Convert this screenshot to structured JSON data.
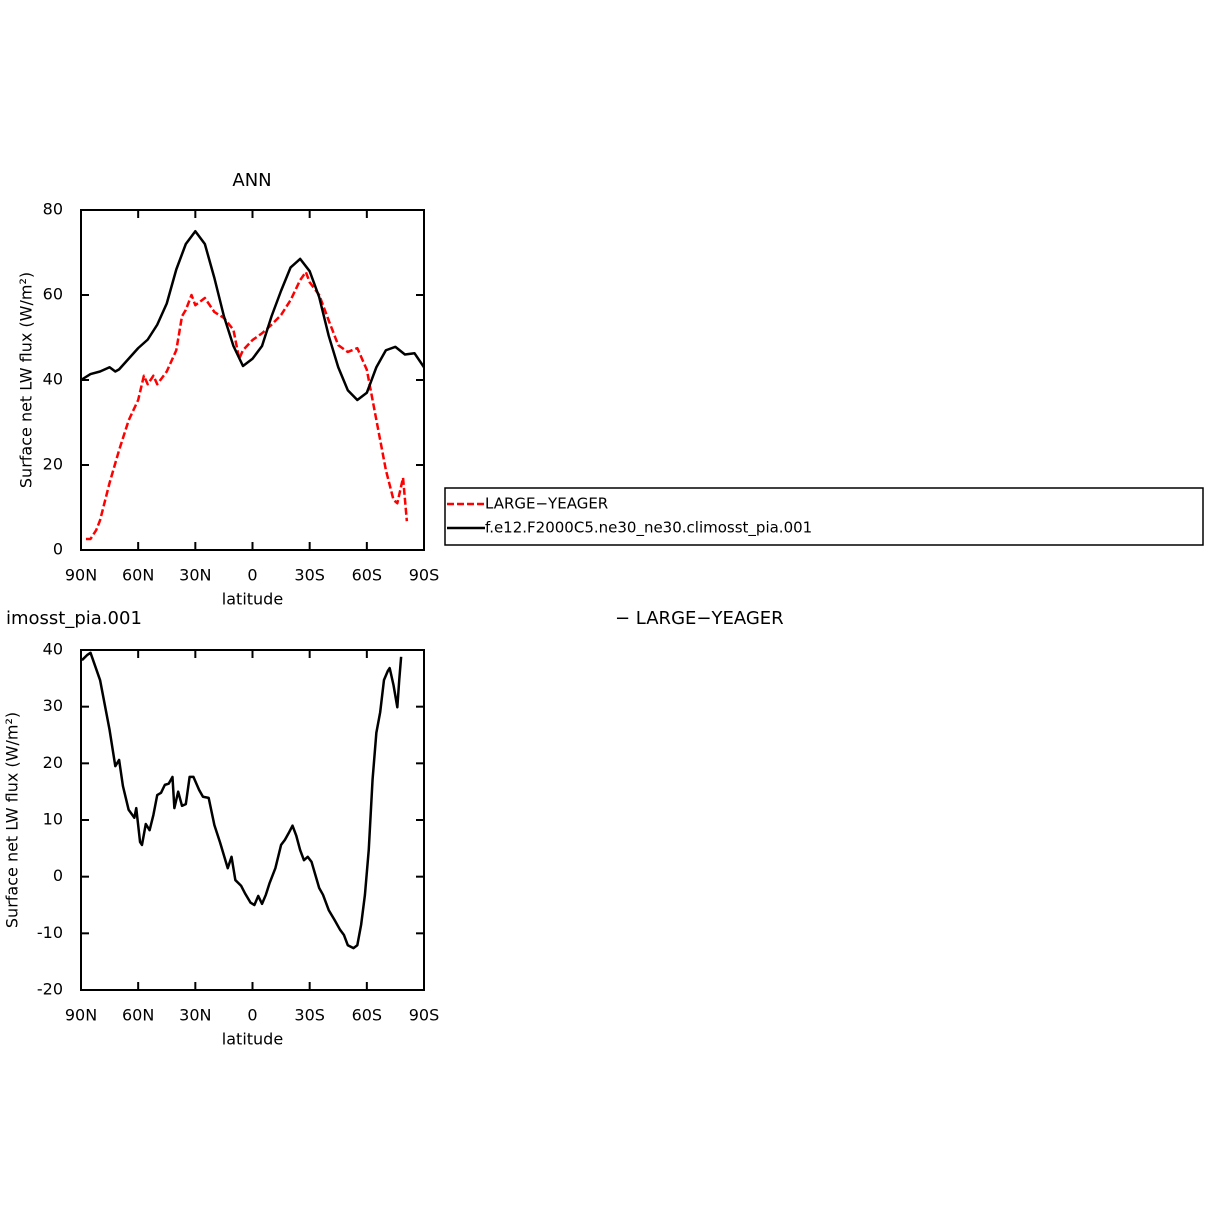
{
  "chart_data": [
    {
      "type": "line",
      "title": "ANN",
      "xlabel": "latitude",
      "ylabel": "Surface net LW flux (W/m²)",
      "xlim": [
        90,
        -90
      ],
      "xticks": [
        {
          "value": 90,
          "label": "90N"
        },
        {
          "value": 60,
          "label": "60N"
        },
        {
          "value": 30,
          "label": "30N"
        },
        0,
        {
          "value": -30,
          "label": "30S"
        },
        {
          "value": -60,
          "label": "60S"
        },
        {
          "value": -90,
          "label": "90S"
        }
      ],
      "ylim": [
        0,
        80
      ],
      "yticks": [
        0,
        20,
        40,
        60,
        80
      ],
      "legend": "outside-right",
      "series": [
        {
          "name": "LARGE−YEAGER",
          "color": "#ff0000",
          "dashed": true,
          "x": [
            87.4,
            85,
            82,
            80,
            75,
            70,
            65,
            60,
            57,
            55,
            52,
            50,
            45,
            40,
            37,
            35,
            32,
            30,
            25,
            20,
            15,
            10,
            7,
            5,
            0,
            -5,
            -10,
            -15,
            -20,
            -25,
            -28,
            -30,
            -35,
            -40,
            -45,
            -50,
            -55,
            -60,
            -65,
            -70,
            -74,
            -76,
            -79,
            -81
          ],
          "values": [
            2.6,
            2.6,
            4.7,
            7,
            15.8,
            23.5,
            30.5,
            35.3,
            41,
            39,
            41,
            39,
            42,
            47,
            55,
            56.5,
            60,
            57.6,
            59.3,
            56,
            54.6,
            51.8,
            45,
            47,
            49.4,
            51,
            53,
            55.3,
            58.8,
            63.5,
            65.4,
            63,
            60,
            54,
            48.2,
            46.6,
            47.5,
            42.4,
            30.6,
            18.8,
            11.8,
            11,
            17,
            6.8
          ]
        },
        {
          "name": "f.e12.F2000C5.ne30_ne30.climosst_pia.001",
          "color": "#000000",
          "dashed": false,
          "x": [
            90,
            85,
            80,
            75,
            72,
            70,
            65,
            60,
            55,
            50,
            45,
            40,
            35,
            30,
            25,
            20,
            15,
            10,
            5,
            0,
            -5,
            -10,
            -15,
            -20,
            -25,
            -30,
            -35,
            -40,
            -45,
            -50,
            -55,
            -60,
            -65,
            -70,
            -75,
            -80,
            -85,
            -90
          ],
          "values": [
            40,
            41.4,
            42,
            43,
            42,
            42.5,
            45,
            47.5,
            49.5,
            53,
            58,
            66,
            72,
            75,
            72,
            64,
            55,
            48,
            43.3,
            45,
            48,
            55,
            61,
            66.5,
            68.5,
            65.6,
            59.5,
            50.4,
            43,
            37.6,
            35.3,
            37,
            43,
            47,
            47.8,
            46,
            46.3,
            43
          ]
        }
      ]
    },
    {
      "type": "line",
      "title": "imosst_pia.001",
      "annotation": "− LARGE−YEAGER",
      "xlabel": "latitude",
      "ylabel": "Surface net LW flux (W/m²)",
      "xlim": [
        90,
        -90
      ],
      "xticks": [
        {
          "value": 90,
          "label": "90N"
        },
        {
          "value": 60,
          "label": "60N"
        },
        {
          "value": 30,
          "label": "30N"
        },
        0,
        {
          "value": -30,
          "label": "30S"
        },
        {
          "value": -60,
          "label": "60S"
        },
        {
          "value": -90,
          "label": "90S"
        }
      ],
      "ylim": [
        -20,
        40
      ],
      "yticks": [
        -20,
        -10,
        0,
        10,
        20,
        30,
        40
      ],
      "series": [
        {
          "color": "#000000",
          "dashed": false,
          "x": [
            89.5,
            86.8,
            85,
            80,
            75,
            72,
            70,
            68,
            65,
            62,
            61,
            59,
            58,
            56,
            54,
            52,
            50,
            48,
            46,
            44,
            42,
            41,
            39,
            37,
            35,
            33,
            31,
            28,
            26,
            23,
            20,
            17,
            13,
            11,
            9,
            6,
            4,
            1,
            -1,
            -3,
            -5,
            -7,
            -9,
            -12,
            -15,
            -17,
            -19,
            -21,
            -23,
            -25,
            -27,
            -29,
            -31,
            -33,
            -35,
            -37,
            -40,
            -43,
            -46,
            -48,
            -50,
            -53,
            -55,
            -57,
            -59,
            -61,
            -63,
            -65,
            -67,
            -69,
            -71,
            -72,
            -74,
            -76,
            -77,
            -78
          ],
          "values": [
            38.2,
            39.1,
            39.5,
            34.7,
            25.9,
            19.5,
            20.6,
            16,
            11.8,
            10.4,
            12.1,
            6.1,
            5.6,
            9.3,
            8.2,
            10.9,
            14.4,
            14.8,
            16.2,
            16.4,
            17.6,
            12.1,
            15,
            12.5,
            12.8,
            17.6,
            17.6,
            15.3,
            14.1,
            13.9,
            9.1,
            6,
            1.5,
            3.5,
            -0.6,
            -1.6,
            -2.9,
            -4.6,
            -5,
            -3.4,
            -4.8,
            -3.2,
            -1.1,
            1.5,
            5.6,
            6.5,
            7.7,
            9,
            7.2,
            4.7,
            2.9,
            3.5,
            2.6,
            0.3,
            -2,
            -3.2,
            -5.9,
            -7.6,
            -9.4,
            -10.3,
            -12.1,
            -12.6,
            -12.1,
            -8.5,
            -3.2,
            4.7,
            17.1,
            25.4,
            29,
            34.7,
            36.3,
            36.8,
            33.8,
            29.9,
            34.7,
            38.8
          ]
        }
      ]
    }
  ]
}
